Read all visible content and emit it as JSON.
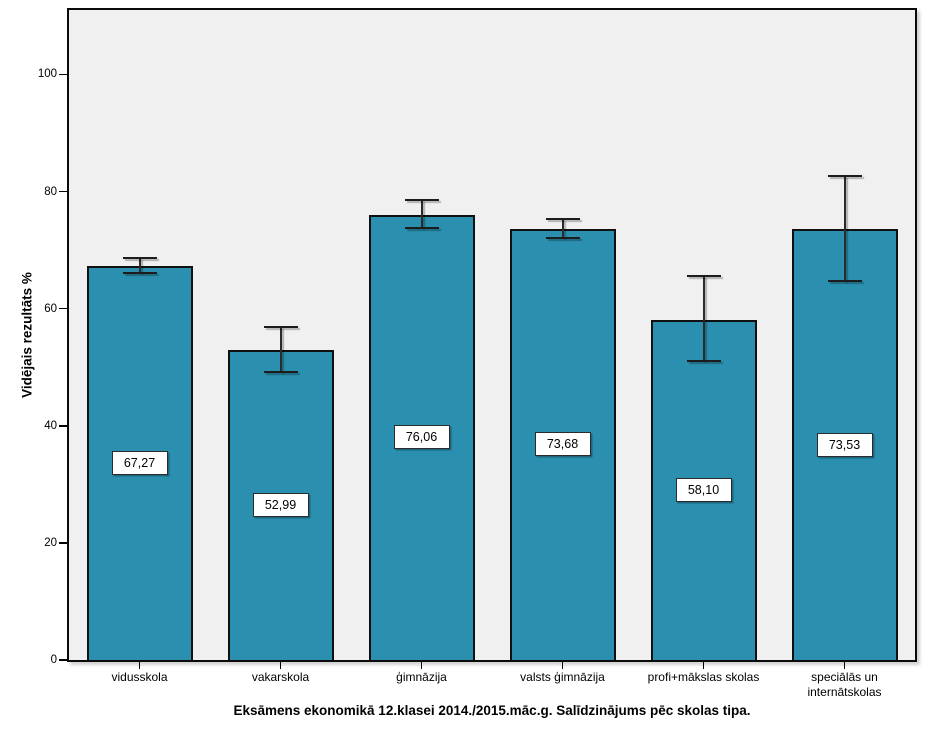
{
  "chart_data": {
    "type": "bar",
    "title": "Eksāmens ekonomikā 12.klasei 2014./2015.māc.g. Salīdzinājums pēc skolas tipa.",
    "ylabel": "Vidējais rezultāts %",
    "xlabel": "",
    "categories": [
      "vidusskola",
      "vakarskola",
      "ģimnāzija",
      "valsts ģimnāzija",
      "profi+mākslas skolas",
      "speciālās un internātskolas"
    ],
    "values": [
      67.27,
      52.99,
      76.06,
      73.68,
      58.1,
      73.53
    ],
    "value_labels": [
      "67,27",
      "52,99",
      "76,06",
      "73,68",
      "58,10",
      "73,53"
    ],
    "error_low": [
      66.1,
      49.2,
      73.8,
      72.1,
      51.1,
      64.8
    ],
    "error_high": [
      68.6,
      56.9,
      78.5,
      75.3,
      65.5,
      82.7
    ],
    "yticks": [
      0,
      20,
      40,
      60,
      80,
      100
    ],
    "ylim": [
      0,
      111
    ],
    "grid": false,
    "legend": null,
    "bar_color": "#2b90b0",
    "bar_border_color": "#101010",
    "plot_bg_color": "#f0f0f0",
    "error_bar_color": "#2b2b2b"
  }
}
